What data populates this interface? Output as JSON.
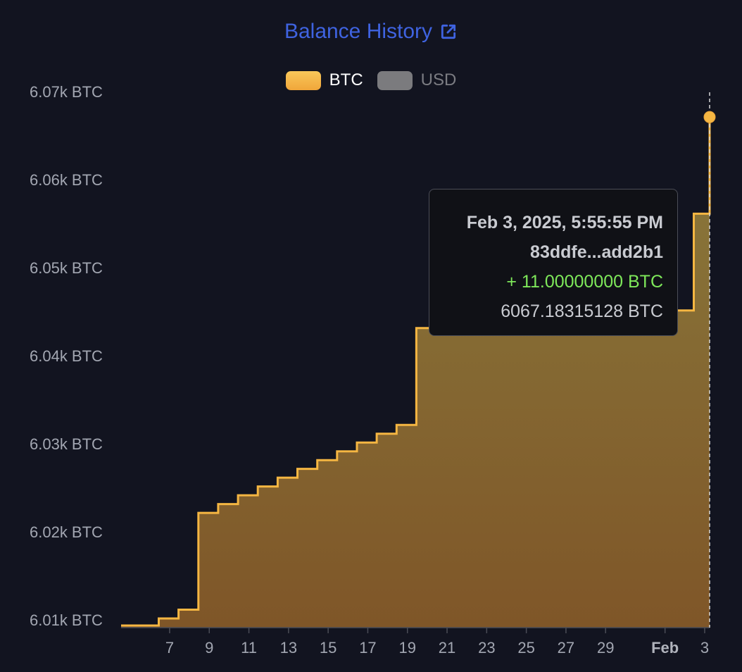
{
  "colors": {
    "background": "#121420",
    "title": "#3f63e0",
    "btc": "#f5b642",
    "usd": "#7b7b7e",
    "positive_change": "#7ee85a"
  },
  "title": {
    "text": "Balance History",
    "icon": "external-link-icon"
  },
  "legend": [
    {
      "label": "BTC",
      "active": true
    },
    {
      "label": "USD",
      "active": false
    }
  ],
  "tooltip": {
    "date": "Feb 3, 2025, 5:55:55 PM",
    "txid": "83ddfe...add2b1",
    "change": "+ 11.00000000 BTC",
    "balance": "6067.18315128 BTC"
  },
  "chart_data": {
    "type": "area",
    "step": true,
    "series": [
      {
        "name": "BTC",
        "x": [
          "Jan 5",
          "Jan 6",
          "Jan 7",
          "Jan 8",
          "Jan 9",
          "Jan 10",
          "Jan 11",
          "Jan 12",
          "Jan 13",
          "Jan 14",
          "Jan 15",
          "Jan 16",
          "Jan 17",
          "Jan 18",
          "Jan 19",
          "Jan 20",
          "Jan 21",
          "Feb 2",
          "Feb 3"
        ],
        "values": [
          6009.4,
          6010.2,
          6011.2,
          6022.2,
          6023.2,
          6024.2,
          6025.2,
          6026.2,
          6027.2,
          6028.2,
          6029.2,
          6030.2,
          6031.2,
          6032.2,
          6043.2,
          6044.2,
          6045.2,
          6056.2,
          6067.2
        ]
      }
    ],
    "y_ticks": [
      "6.01k BTC",
      "6.02k BTC",
      "6.03k BTC",
      "6.04k BTC",
      "6.05k BTC",
      "6.06k BTC",
      "6.07k BTC"
    ],
    "y_tick_values": [
      6010,
      6020,
      6030,
      6040,
      6050,
      6060,
      6070
    ],
    "x_ticks": [
      "7",
      "9",
      "11",
      "13",
      "15",
      "17",
      "19",
      "21",
      "23",
      "25",
      "27",
      "29",
      "Feb",
      "3"
    ],
    "x_tick_dates": [
      "Jan 7",
      "Jan 9",
      "Jan 11",
      "Jan 13",
      "Jan 15",
      "Jan 17",
      "Jan 19",
      "Jan 21",
      "Jan 23",
      "Jan 25",
      "Jan 27",
      "Jan 29",
      "Feb 1",
      "Feb 3"
    ],
    "x_start": "Jan 5",
    "x_end": "Feb 3",
    "ylim": [
      6009,
      6070
    ],
    "highlight": {
      "x": "Feb 3",
      "y": 6067.18315128
    },
    "grid": false
  }
}
